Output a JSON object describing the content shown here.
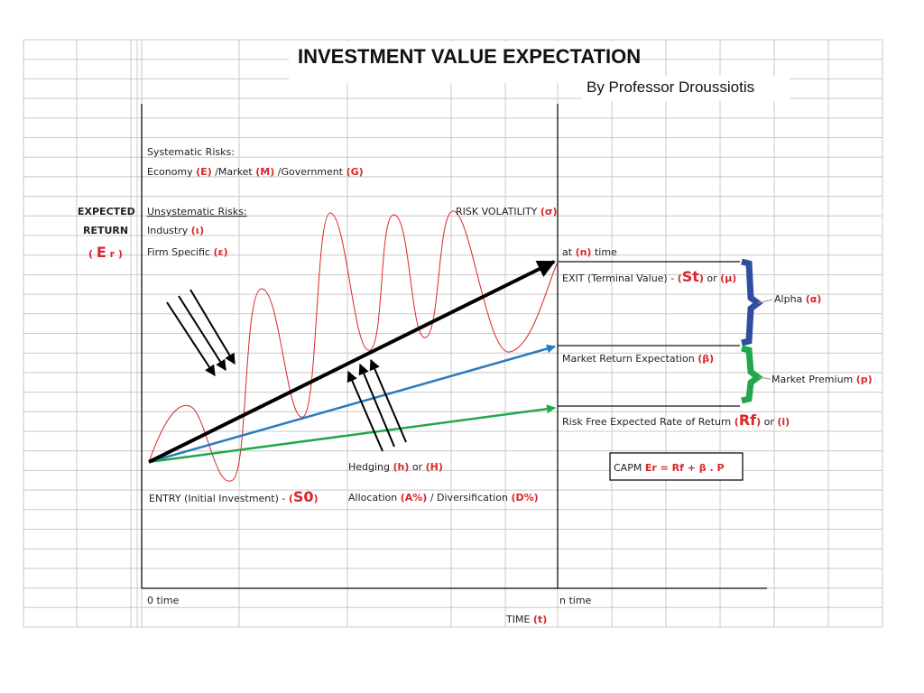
{
  "header": {
    "title": "INVESTMENT VALUE EXPECTATION",
    "byline": "By Professor Droussiotis"
  },
  "labels": {
    "systematic_title": [
      "Systematic Risks:"
    ],
    "systematic": [
      "Economy ",
      "(E)",
      " /Market ",
      "(M)",
      " /Government ",
      "(G)"
    ],
    "unsystematic_title": [
      "Unsystematic Risks:"
    ],
    "industry": [
      "Industry ",
      "(ι)"
    ],
    "firm": [
      "Firm Specific ",
      "(ε)"
    ],
    "expected": [
      "EXPECTED"
    ],
    "return": [
      "RETURN"
    ],
    "er": [
      "( ",
      "E",
      " r )"
    ],
    "volatility": [
      "RISK VOLATILITY ",
      "(σ)"
    ],
    "at_n": [
      "at ",
      "(n)",
      " time"
    ],
    "exit": [
      "EXIT (Terminal Value) - ",
      "(",
      "St",
      ")",
      " or ",
      "(μ)"
    ],
    "alpha": [
      "Alpha ",
      "(α)"
    ],
    "market_return": [
      "Market Return Expectation ",
      "(β)"
    ],
    "market_premium": [
      "Market Premium ",
      "(p)"
    ],
    "risk_free": [
      "Risk Free Expected Rate of Return ",
      "(",
      "Rf",
      ")",
      " or ",
      "(i)"
    ],
    "capm": [
      "CAPM ",
      "Er = Rf + β . P"
    ],
    "hedging": [
      "Hedging ",
      "(h)",
      " or ",
      "(H)"
    ],
    "entry": [
      "ENTRY (Initial Investment) - ",
      "(",
      "S0",
      ")"
    ],
    "allocation": [
      "Allocation ",
      "(A%)",
      " / Diversification ",
      "(D%)"
    ],
    "zero_time": [
      "0 time"
    ],
    "n_time": [
      "n time"
    ],
    "time": [
      "TIME ",
      "(t)"
    ]
  }
}
